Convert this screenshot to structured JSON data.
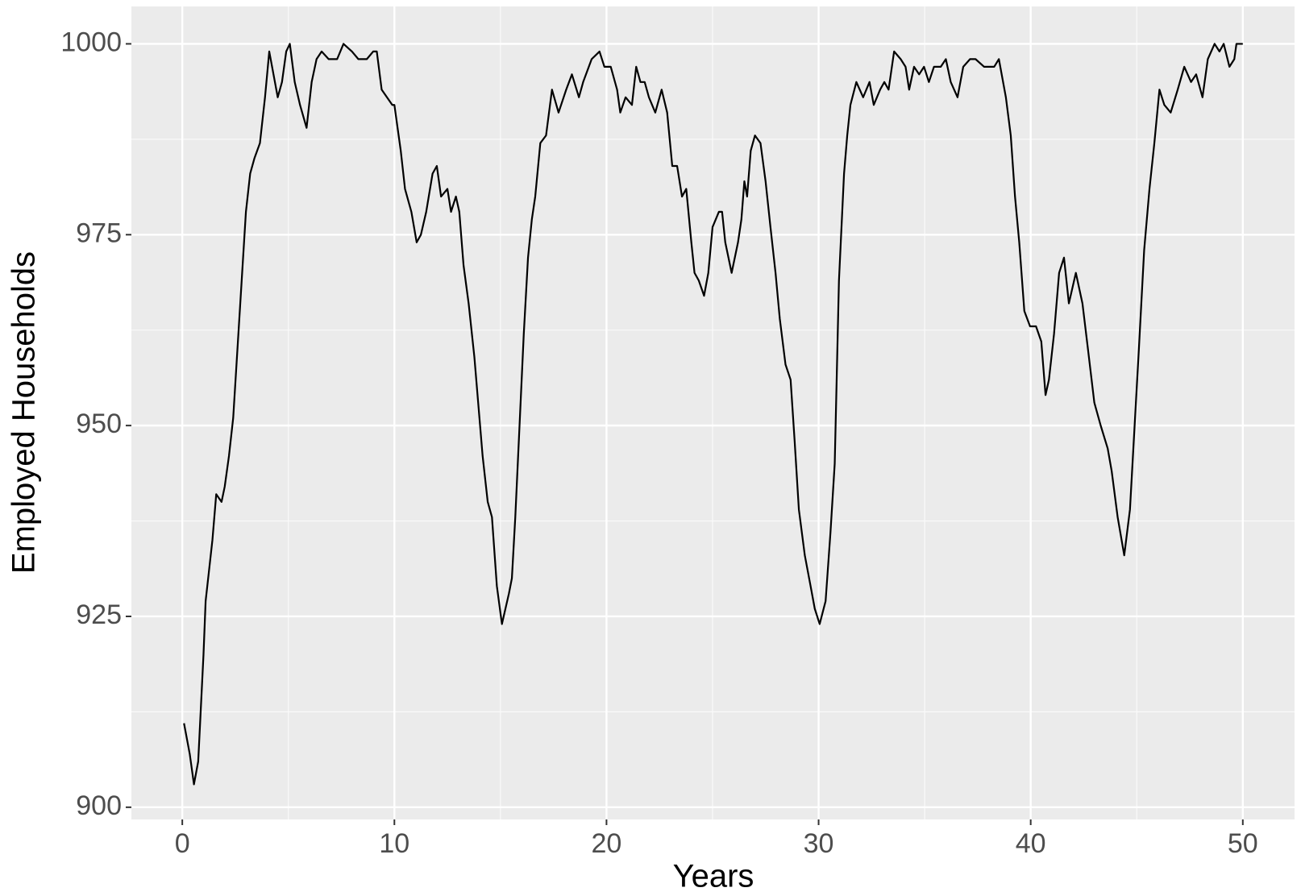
{
  "chart_data": {
    "type": "line",
    "xlabel": "Years",
    "ylabel": "Employed Households",
    "color": "#000000",
    "grid": true,
    "xlim": [
      -2.4,
      52.44
    ],
    "ylim": [
      898.4,
      1004.9
    ],
    "xticks": [
      0,
      10,
      20,
      30,
      40,
      50
    ],
    "yticks": [
      900,
      925,
      950,
      975,
      1000
    ],
    "x": [
      0.08,
      0.35,
      0.55,
      0.75,
      1.0,
      1.1,
      1.42,
      1.6,
      1.85,
      2.0,
      2.2,
      2.4,
      2.6,
      2.8,
      3.0,
      3.2,
      3.4,
      3.66,
      3.9,
      4.1,
      4.3,
      4.5,
      4.7,
      4.9,
      5.07,
      5.3,
      5.55,
      5.86,
      6.1,
      6.33,
      6.57,
      6.9,
      7.3,
      7.6,
      8.0,
      8.3,
      8.7,
      9.0,
      9.17,
      9.4,
      9.9,
      10.0,
      10.3,
      10.5,
      10.8,
      11.05,
      11.25,
      11.5,
      11.8,
      12.0,
      12.2,
      12.5,
      12.67,
      12.9,
      13.06,
      13.26,
      13.5,
      13.77,
      14.04,
      14.16,
      14.4,
      14.6,
      14.83,
      15.07,
      15.4,
      15.54,
      15.7,
      15.9,
      16.1,
      16.3,
      16.48,
      16.64,
      16.88,
      17.15,
      17.43,
      17.74,
      18.1,
      18.37,
      18.7,
      18.9,
      19.3,
      19.67,
      19.9,
      20.2,
      20.5,
      20.65,
      20.9,
      21.2,
      21.4,
      21.6,
      21.8,
      22.0,
      22.3,
      22.6,
      22.86,
      23.1,
      23.33,
      23.56,
      23.76,
      24.0,
      24.15,
      24.35,
      24.6,
      24.8,
      25.0,
      25.3,
      25.45,
      25.6,
      25.9,
      26.2,
      26.36,
      26.5,
      26.63,
      26.8,
      27.0,
      27.26,
      27.5,
      27.73,
      27.97,
      28.17,
      28.44,
      28.68,
      28.87,
      29.07,
      29.35,
      29.62,
      29.82,
      30.05,
      30.33,
      30.56,
      30.76,
      30.96,
      31.2,
      31.35,
      31.5,
      31.78,
      32.1,
      32.4,
      32.6,
      32.9,
      33.1,
      33.3,
      33.56,
      33.87,
      34.1,
      34.27,
      34.5,
      34.74,
      34.97,
      35.2,
      35.44,
      35.76,
      36.0,
      36.23,
      36.55,
      36.82,
      37.14,
      37.4,
      37.8,
      38.28,
      38.5,
      38.83,
      39.06,
      39.26,
      39.46,
      39.7,
      39.97,
      40.25,
      40.5,
      40.7,
      40.86,
      41.1,
      41.34,
      41.57,
      41.8,
      42.13,
      42.44,
      42.7,
      43.0,
      43.3,
      43.63,
      43.82,
      44.1,
      44.41,
      44.68,
      44.88,
      45.1,
      45.35,
      45.6,
      45.83,
      46.07,
      46.3,
      46.6,
      46.93,
      47.24,
      47.56,
      47.8,
      48.1,
      48.35,
      48.67,
      48.9,
      49.1,
      49.37,
      49.6,
      49.7,
      50.0
    ],
    "values": [
      911,
      907,
      903,
      906,
      920,
      927,
      935,
      941,
      940,
      942,
      946,
      951,
      960,
      969,
      978,
      983,
      985,
      987,
      993,
      999,
      996,
      993,
      995,
      999,
      1000,
      995,
      992,
      989,
      995,
      998,
      999,
      998,
      998,
      1000,
      999,
      998,
      998,
      999,
      999,
      994,
      992,
      992,
      986,
      981,
      978,
      974,
      975,
      978,
      983,
      984,
      980,
      981,
      978,
      980,
      978,
      971,
      966,
      959,
      950,
      946,
      940,
      938,
      929,
      924,
      928,
      930,
      938,
      950,
      962,
      972,
      977,
      980,
      987,
      988,
      994,
      991,
      994,
      996,
      993,
      995,
      998,
      999,
      997,
      997,
      994,
      991,
      993,
      992,
      997,
      995,
      995,
      993,
      991,
      994,
      991,
      984,
      984,
      980,
      981,
      974,
      970,
      969,
      967,
      970,
      976,
      978,
      978,
      974,
      970,
      974,
      977,
      982,
      980,
      986,
      988,
      987,
      982,
      976,
      970,
      964,
      958,
      956,
      948,
      939,
      933,
      929,
      926,
      924,
      927,
      936,
      945,
      969,
      983,
      988,
      992,
      995,
      993,
      995,
      992,
      994,
      995,
      994,
      999,
      998,
      997,
      994,
      997,
      996,
      997,
      995,
      997,
      997,
      998,
      995,
      993,
      997,
      998,
      998,
      997,
      997,
      998,
      993,
      988,
      980,
      974,
      965,
      963,
      963,
      961,
      954,
      956,
      962,
      970,
      972,
      966,
      970,
      966,
      960,
      953,
      950,
      947,
      944,
      938,
      933,
      939,
      949,
      960,
      973,
      981,
      987,
      994,
      992,
      991,
      994,
      997,
      995,
      996,
      993,
      998,
      1000,
      999,
      1000,
      997,
      998,
      1000,
      1000
    ]
  }
}
